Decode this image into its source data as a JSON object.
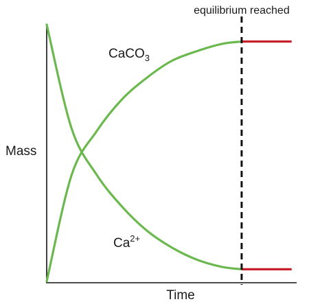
{
  "chart_data": {
    "type": "line",
    "xlabel": "Time",
    "ylabel": "Mass",
    "xlim": [
      0,
      1
    ],
    "ylim": [
      0,
      1
    ],
    "grid": false,
    "series": [
      {
        "name": "CaCO3",
        "label_main": "CaCO",
        "label_sub": "3",
        "color": "#6ab84e",
        "equilibrium_color": "#c8202a",
        "x": [
          0,
          0.1,
          0.2,
          0.3,
          0.4,
          0.5,
          0.6,
          0.7,
          0.78
        ],
        "values": [
          0,
          0.44,
          0.62,
          0.75,
          0.84,
          0.91,
          0.95,
          0.98,
          0.99
        ],
        "equilibrium_x": [
          0.78,
          0.98
        ],
        "equilibrium_value": 0.99
      },
      {
        "name": "Ca2+",
        "label_main": "Ca",
        "label_sup": "2+",
        "color": "#6ab84e",
        "equilibrium_color": "#c8202a",
        "x": [
          0,
          0.1,
          0.2,
          0.3,
          0.4,
          0.5,
          0.6,
          0.7,
          0.78
        ],
        "values": [
          1.06,
          0.63,
          0.44,
          0.31,
          0.21,
          0.14,
          0.09,
          0.06,
          0.05
        ],
        "equilibrium_x": [
          0.78,
          0.98
        ],
        "equilibrium_value": 0.05
      }
    ],
    "annotations": [
      {
        "type": "vertical-dashed-line",
        "x": 0.78,
        "text": "equilibrium reached"
      }
    ]
  }
}
